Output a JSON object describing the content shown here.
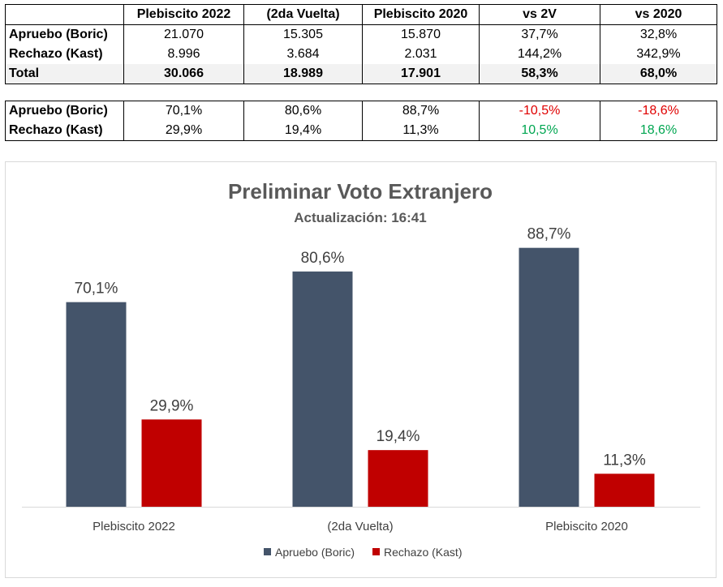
{
  "table_top": {
    "headers": [
      "",
      "Plebiscito 2022",
      "(2da Vuelta)",
      "Plebiscito 2020",
      "vs 2V",
      "vs 2020"
    ],
    "rows": [
      {
        "label": "Apruebo (Boric)",
        "cells": [
          "21.070",
          "15.305",
          "15.870",
          "37,7%",
          "32,8%"
        ]
      },
      {
        "label": "Rechazo (Kast)",
        "cells": [
          "8.996",
          "3.684",
          "2.031",
          "144,2%",
          "342,9%"
        ]
      },
      {
        "label": "Total",
        "cells": [
          "30.066",
          "18.989",
          "17.901",
          "58,3%",
          "68,0%"
        ]
      }
    ]
  },
  "table_bottom": {
    "rows": [
      {
        "label": "Apruebo (Boric)",
        "cells": [
          "70,1%",
          "80,6%",
          "88,7%",
          "-10,5%",
          "-18,6%"
        ]
      },
      {
        "label": "Rechazo (Kast)",
        "cells": [
          "29,9%",
          "19,4%",
          "11,3%",
          "10,5%",
          "18,6%"
        ]
      }
    ]
  },
  "colors": {
    "apruebo": "#44546a",
    "rechazo": "#c00000",
    "negative": "#e00000",
    "positive": "#00a651"
  },
  "chart_data": {
    "type": "bar",
    "title": "Preliminar Voto Extranjero",
    "subtitle": "Actualización: 16:41",
    "categories": [
      "Plebiscito 2022",
      "(2da Vuelta)",
      "Plebiscito 2020"
    ],
    "series": [
      {
        "name": "Apruebo (Boric)",
        "values": [
          70.1,
          80.6,
          88.7
        ],
        "labels": [
          "70,1%",
          "80,6%",
          "88,7%"
        ],
        "color": "#44546a"
      },
      {
        "name": "Rechazo (Kast)",
        "values": [
          29.9,
          19.4,
          11.3
        ],
        "labels": [
          "29,9%",
          "19,4%",
          "11,3%"
        ],
        "color": "#c00000"
      }
    ],
    "ylim": [
      0,
      100
    ],
    "grid": false,
    "legend": "bottom"
  }
}
